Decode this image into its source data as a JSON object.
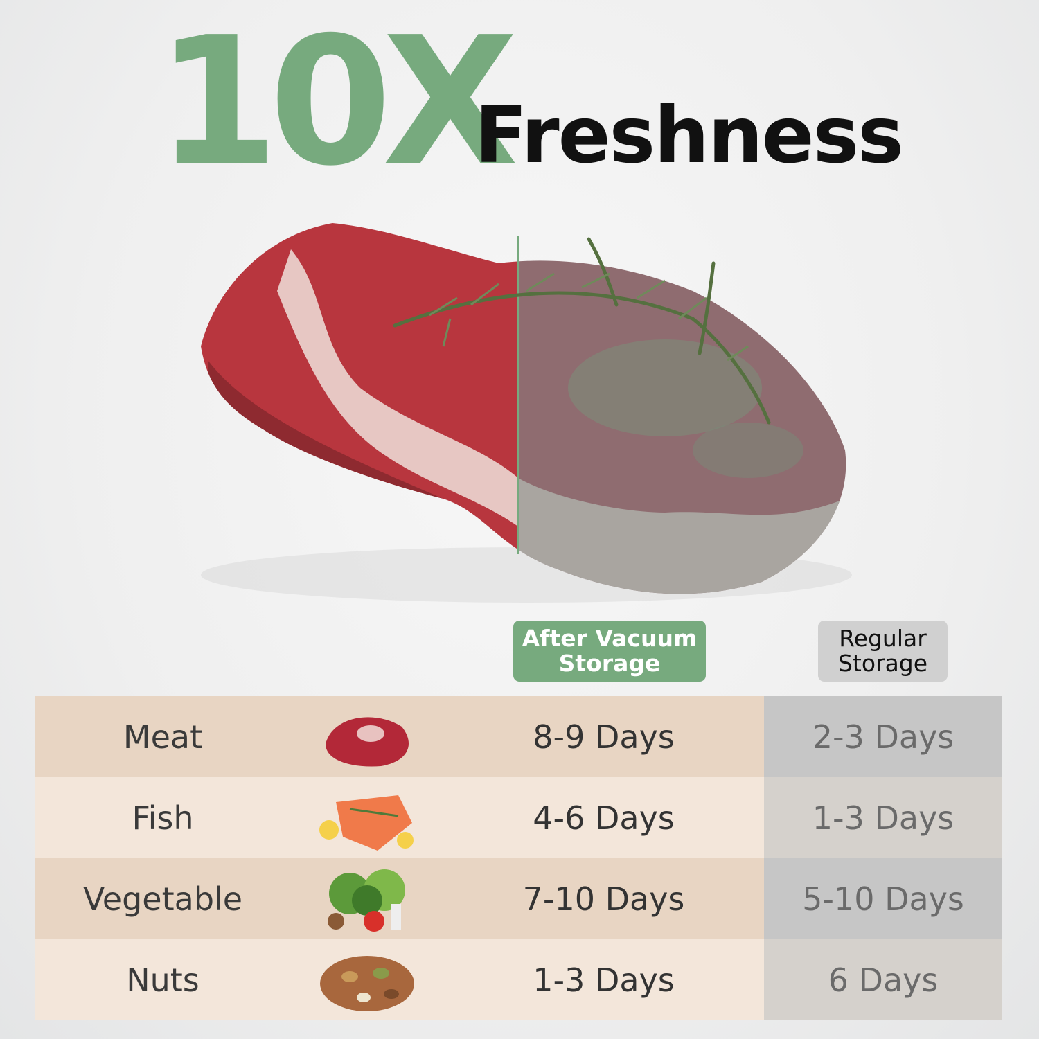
{
  "headline": {
    "highlight": "10X",
    "text": "Freshness"
  },
  "colors": {
    "accent_green": "#77aa7e",
    "row_dark": "#e8d5c3",
    "row_light": "#f3e6da",
    "regular_dark": "#c6c6c6",
    "regular_light": "#d5d1cc"
  },
  "image": {
    "subject": "steak-half-fresh-half-spoiled"
  },
  "columns": {
    "vacuum": "After Vacuum\nStorage",
    "vacuum_line1": "After Vacuum",
    "vacuum_line2": "Storage",
    "regular_line1": "Regular",
    "regular_line2": "Storage"
  },
  "rows": [
    {
      "food": "Meat",
      "icon": "meat-icon",
      "vacuum": "8-9 Days",
      "regular": "2-3 Days"
    },
    {
      "food": "Fish",
      "icon": "fish-icon",
      "vacuum": "4-6 Days",
      "regular": "1-3 Days"
    },
    {
      "food": "Vegetable",
      "icon": "vegetable-icon",
      "vacuum": "7-10 Days",
      "regular": "5-10 Days"
    },
    {
      "food": "Nuts",
      "icon": "nuts-icon",
      "vacuum": "1-3 Days",
      "regular": "6 Days"
    }
  ]
}
